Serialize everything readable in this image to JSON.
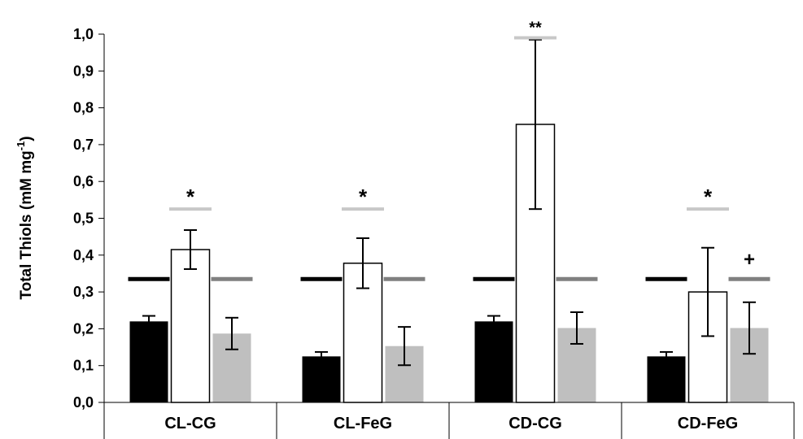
{
  "chart_data": {
    "type": "bar",
    "ylabel_main": "Total Thiols (mM mg",
    "ylabel_sup": "-1",
    "ylabel_end": ")",
    "ylim": [
      0,
      1.0
    ],
    "yticks": [
      "0,0",
      "0,1",
      "0,2",
      "0,3",
      "0,4",
      "0,5",
      "0,6",
      "0,7",
      "0,8",
      "0,9",
      "1,0"
    ],
    "grid": false,
    "categories": [
      "CL-CG",
      "CL-FeG",
      "CD-CG",
      "CD-FeG"
    ],
    "series": [
      {
        "color": "#000000",
        "values": [
          0.22,
          0.125,
          0.22,
          0.125
        ],
        "errors": [
          0.015,
          0.012,
          0.015,
          0.012
        ]
      },
      {
        "color": "#ffffff",
        "values": [
          0.415,
          0.378,
          0.755,
          0.3
        ],
        "errors": [
          0.053,
          0.068,
          0.23,
          0.12
        ]
      },
      {
        "color": "#bfbfbf",
        "values": [
          0.187,
          0.153,
          0.202,
          0.202
        ],
        "errors": [
          0.043,
          0.052,
          0.043,
          0.07
        ]
      }
    ],
    "reference_lines": [
      {
        "color": "#000000",
        "value": 0.335
      },
      {
        "color": "#808080",
        "value": 0.335
      }
    ],
    "annotations": [
      {
        "category": 0,
        "text": "*",
        "line_value": 0.525,
        "line_color": "#c8c8c8"
      },
      {
        "category": 1,
        "text": "*",
        "line_value": 0.525,
        "line_color": "#c8c8c8"
      },
      {
        "category": 2,
        "text": "**",
        "line_value": 0.99,
        "line_color": "#c8c8c8"
      },
      {
        "category": 3,
        "text": "*",
        "line_value": 0.525,
        "line_color": "#c8c8c8"
      },
      {
        "category": 3,
        "bar": 2,
        "text": "+",
        "line_value": null,
        "line_color": null
      }
    ]
  }
}
